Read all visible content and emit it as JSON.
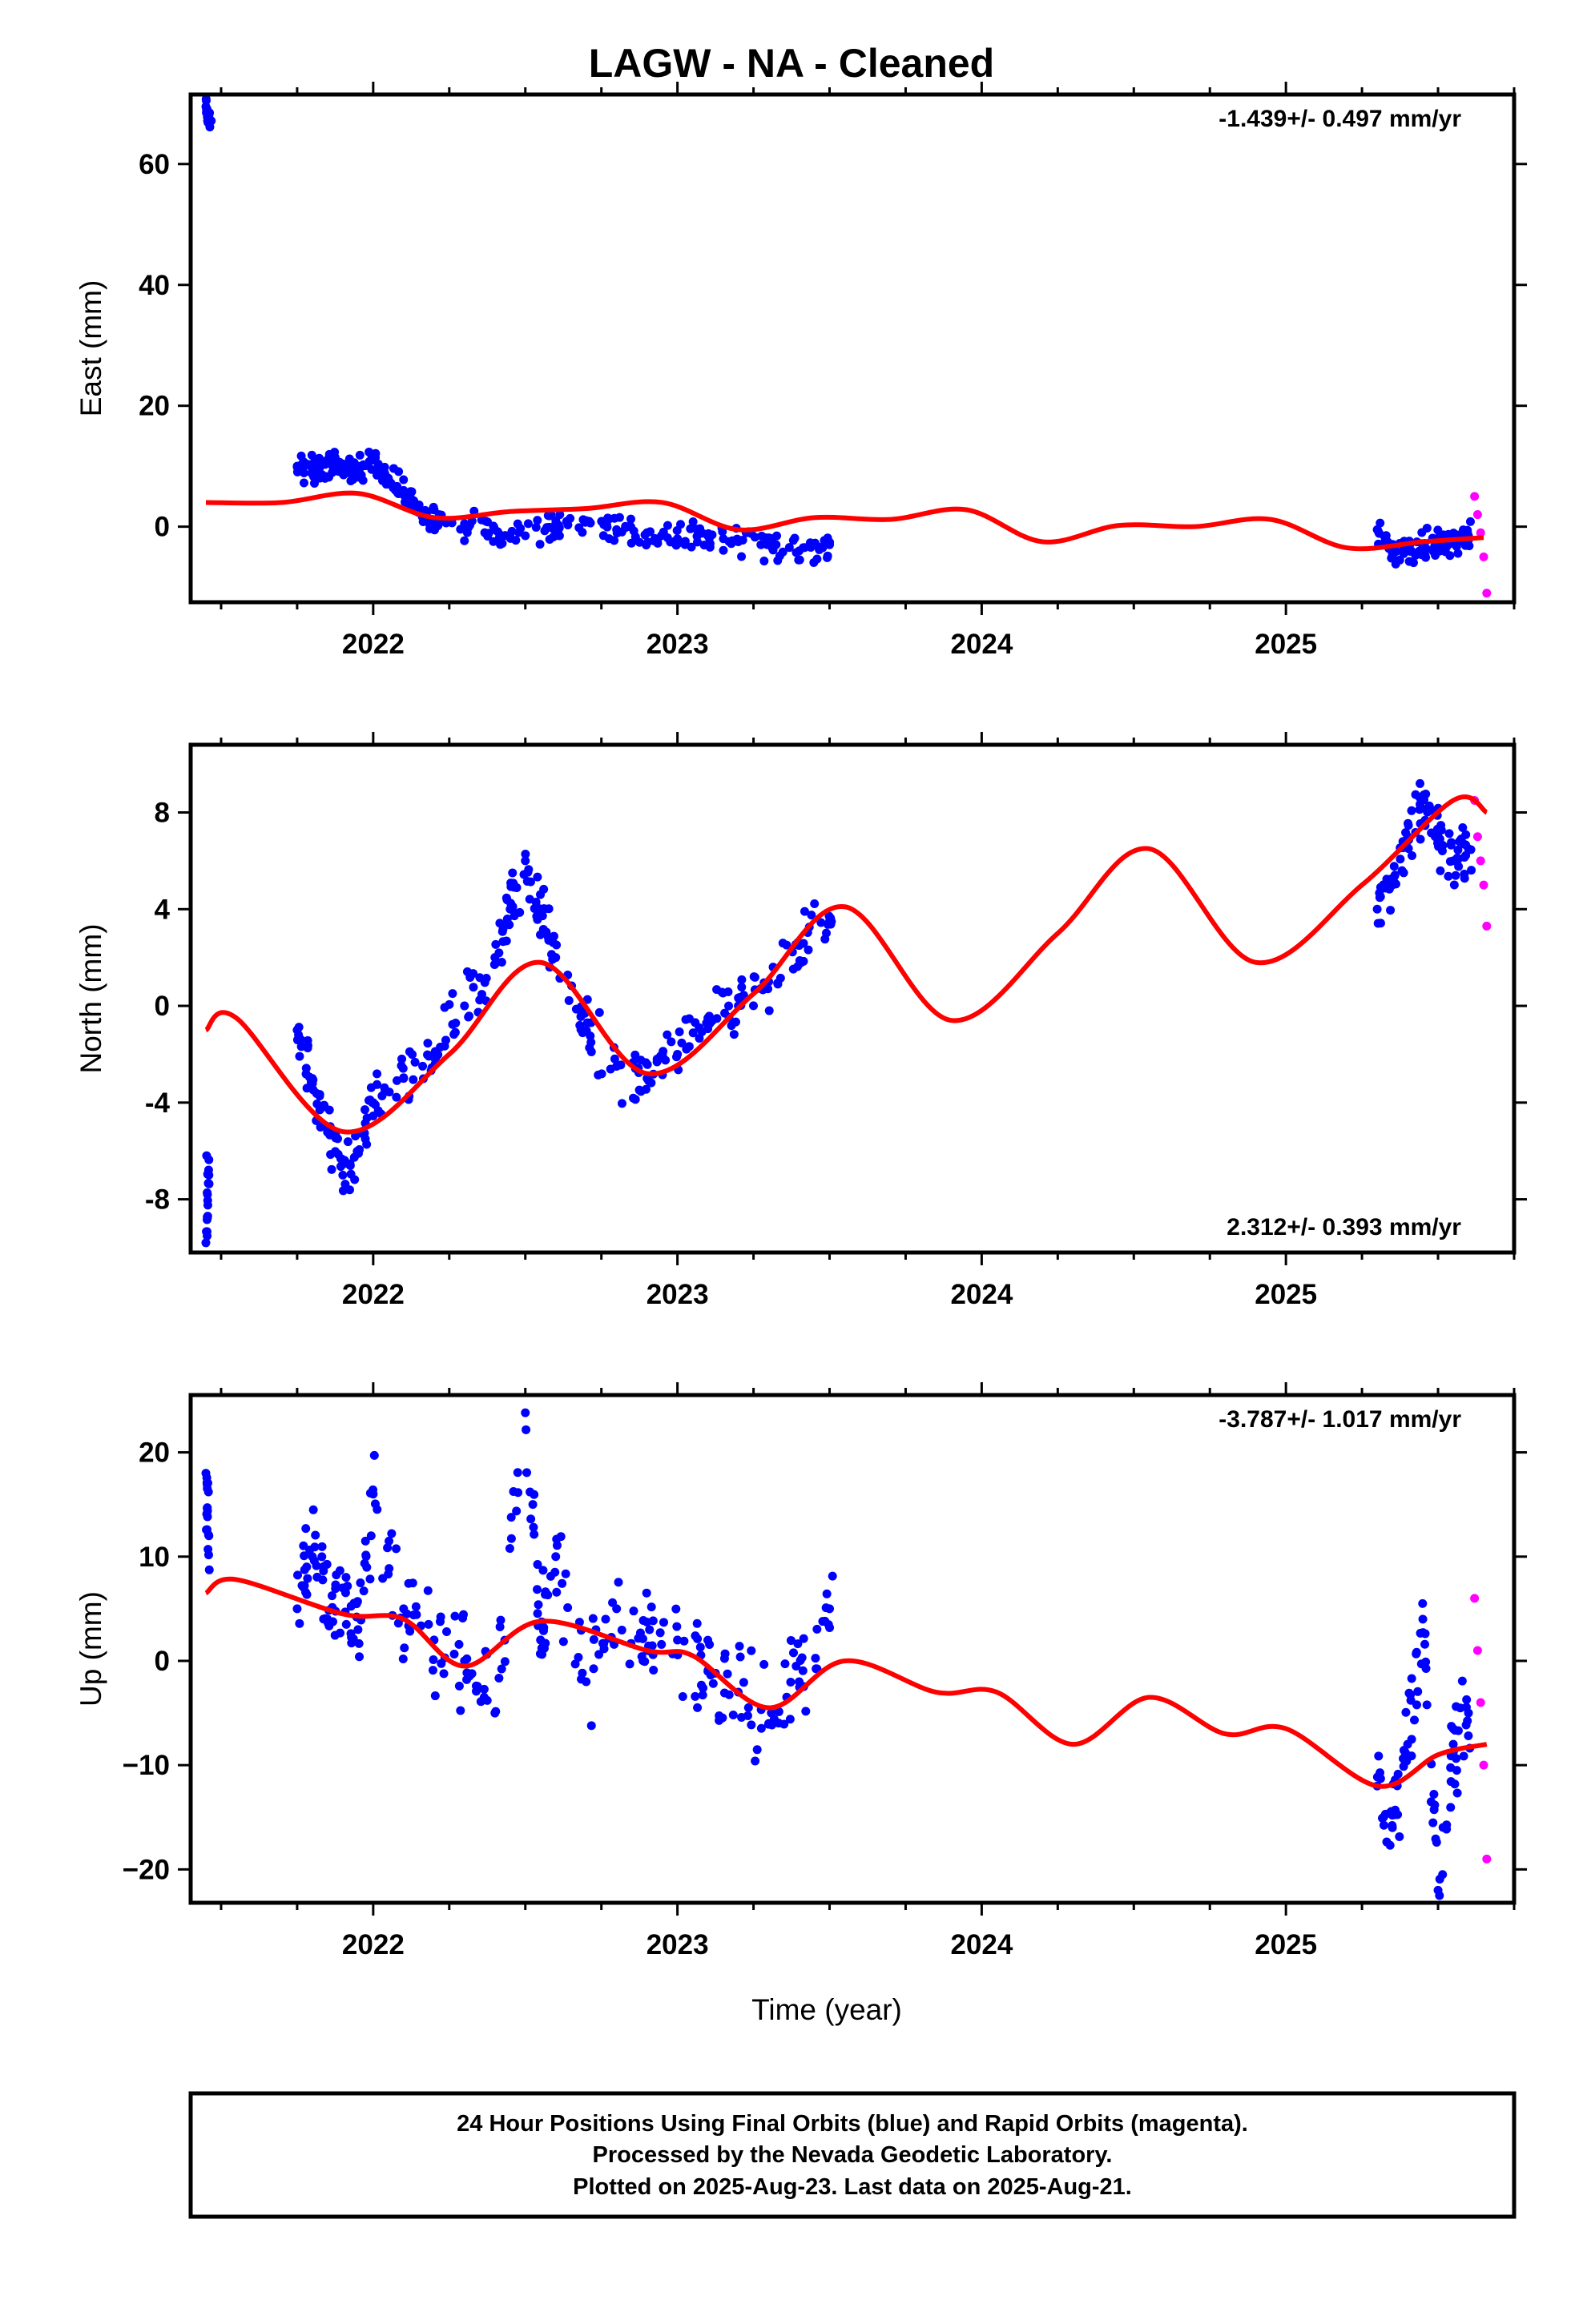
{
  "figure_title": "LAGW  - NA - Cleaned",
  "xlabel": "Time (year)",
  "colors": {
    "final_orbits": "#0000ff",
    "rapid_orbits": "#ff00ff",
    "model": "#ff0000",
    "frame": "#000000"
  },
  "footer": [
    "24 Hour Positions Using Final Orbits (blue) and Rapid Orbits (magenta).",
    "Processed by the Nevada Geodetic Laboratory.",
    "Plotted on 2025-Aug-23. Last data on 2025-Aug-21."
  ],
  "chart_data": [
    {
      "type": "scatter",
      "ylabel": "East (mm)",
      "rate": "-1.439+/- 0.497 mm/yr",
      "xlim": [
        2021.4,
        2025.75
      ],
      "ylim": [
        -12.5,
        71.5
      ],
      "yticks": [
        0,
        20,
        40,
        60
      ],
      "ytick_labels": [
        "0",
        "20",
        "40",
        "60"
      ],
      "xticks": [
        2022,
        2023,
        2024,
        2025
      ],
      "xtick_labels": [
        "2022",
        "2023",
        "2024",
        "2025"
      ],
      "series": [
        {
          "role": "final_orbits",
          "x": [
            2021.45,
            2021.46,
            2021.75,
            2021.8,
            2021.85,
            2021.9,
            2021.95,
            2022.0,
            2022.05,
            2022.1,
            2022.15,
            2022.2,
            2022.3,
            2022.4,
            2022.5,
            2022.6,
            2022.7,
            2022.8,
            2022.9,
            2023.0,
            2023.1,
            2023.2,
            2023.3,
            2023.4,
            2023.5,
            2025.3,
            2025.35,
            2025.4,
            2025.45,
            2025.5,
            2025.55,
            2025.6
          ],
          "values": [
            69.5,
            68,
            10,
            9.5,
            10.5,
            9,
            10,
            11,
            8,
            6,
            3,
            1,
            0.5,
            -0.5,
            -1.5,
            0.5,
            1,
            -0.5,
            -1,
            -2,
            -1.5,
            -2.5,
            -3,
            -4,
            -3,
            -0.5,
            -4.5,
            -4,
            -3,
            -2.5,
            -2,
            -1.5
          ]
        },
        {
          "role": "rapid_orbits",
          "x": [
            2025.62,
            2025.63,
            2025.64,
            2025.65,
            2025.66
          ],
          "values": [
            5,
            2,
            -1,
            -5,
            -11
          ]
        },
        {
          "role": "model",
          "x": [
            2021.45,
            2021.7,
            2021.95,
            2022.2,
            2022.45,
            2022.7,
            2022.95,
            2023.2,
            2023.45,
            2023.7,
            2023.95,
            2024.2,
            2024.45,
            2024.7,
            2024.95,
            2025.2,
            2025.45,
            2025.65
          ],
          "values": [
            4,
            4,
            5.5,
            1.5,
            2.5,
            3,
            4,
            -0.5,
            1.5,
            1.2,
            2.8,
            -2.5,
            0.2,
            0,
            1.2,
            -3.5,
            -2.5,
            -1.8
          ]
        }
      ]
    },
    {
      "type": "scatter",
      "ylabel": "North (mm)",
      "rate": "2.312+/- 0.393 mm/yr",
      "xlim": [
        2021.4,
        2025.75
      ],
      "ylim": [
        -10.2,
        10.8
      ],
      "yticks": [
        -8,
        -4,
        0,
        4,
        8
      ],
      "ytick_labels": [
        "-8",
        "-4",
        "0",
        "4",
        "8"
      ],
      "xticks": [
        2022,
        2023,
        2024,
        2025
      ],
      "xtick_labels": [
        "2022",
        "2023",
        "2024",
        "2025"
      ],
      "series": [
        {
          "role": "final_orbits",
          "x": [
            2021.45,
            2021.46,
            2021.75,
            2021.8,
            2021.85,
            2021.9,
            2021.95,
            2022.0,
            2022.1,
            2022.2,
            2022.3,
            2022.4,
            2022.45,
            2022.5,
            2022.55,
            2022.6,
            2022.7,
            2022.8,
            2022.9,
            2023.0,
            2023.1,
            2023.2,
            2023.3,
            2023.4,
            2023.5,
            2025.3,
            2025.35,
            2025.4,
            2025.45,
            2025.5,
            2025.55,
            2025.6
          ],
          "values": [
            -9.8,
            -7,
            -1,
            -3,
            -5,
            -7,
            -6,
            -4,
            -3,
            -2,
            0,
            2,
            4,
            6,
            4,
            2,
            -1,
            -2.5,
            -3,
            -2,
            -0.5,
            0,
            1,
            2.5,
            3.5,
            4,
            5,
            7,
            8.5,
            7,
            6,
            6.5
          ]
        },
        {
          "role": "rapid_orbits",
          "x": [
            2025.62,
            2025.63,
            2025.64,
            2025.65,
            2025.66
          ],
          "values": [
            8.5,
            7,
            6,
            5,
            3.3
          ]
        },
        {
          "role": "model",
          "x": [
            2021.45,
            2021.55,
            2021.9,
            2022.25,
            2022.55,
            2022.9,
            2023.25,
            2023.55,
            2023.9,
            2024.25,
            2024.55,
            2024.9,
            2025.25,
            2025.55,
            2025.66
          ],
          "values": [
            -1,
            -0.5,
            -5.2,
            -2,
            1.8,
            -2.8,
            0.5,
            4.1,
            -0.6,
            3,
            6.5,
            1.8,
            5,
            8.5,
            8
          ]
        }
      ]
    },
    {
      "type": "scatter",
      "ylabel": "Up (mm)",
      "rate": "-3.787+/- 1.017 mm/yr",
      "xlim": [
        2021.4,
        2025.75
      ],
      "ylim": [
        -23.2,
        25.5
      ],
      "yticks": [
        -20,
        -10,
        0,
        10,
        20
      ],
      "ytick_labels": [
        "−20",
        "−10",
        "0",
        "10",
        "20"
      ],
      "xticks": [
        2022,
        2023,
        2024,
        2025
      ],
      "xtick_labels": [
        "2022",
        "2023",
        "2024",
        "2025"
      ],
      "series": [
        {
          "role": "final_orbits",
          "x": [
            2021.45,
            2021.46,
            2021.75,
            2021.8,
            2021.85,
            2021.9,
            2021.95,
            2022.0,
            2022.1,
            2022.2,
            2022.3,
            2022.4,
            2022.5,
            2022.55,
            2022.6,
            2022.7,
            2022.8,
            2022.9,
            2023.0,
            2023.1,
            2023.2,
            2023.3,
            2023.4,
            2023.5,
            2025.3,
            2025.35,
            2025.4,
            2025.45,
            2025.5,
            2025.55,
            2025.6
          ],
          "values": [
            18,
            12,
            5,
            10,
            4,
            7,
            3,
            16,
            5,
            2,
            0,
            -5,
            23.8,
            2,
            10,
            -2,
            5,
            1,
            2,
            -1,
            -3,
            -6,
            -2,
            5,
            -12,
            -16,
            -8,
            4,
            -22,
            -8,
            -5
          ]
        },
        {
          "role": "rapid_orbits",
          "x": [
            2025.62,
            2025.63,
            2025.64,
            2025.65,
            2025.66
          ],
          "values": [
            6,
            1,
            -4,
            -10,
            -19
          ]
        },
        {
          "role": "model",
          "x": [
            2021.45,
            2021.55,
            2021.9,
            2022.1,
            2022.3,
            2022.55,
            2022.9,
            2023.05,
            2023.3,
            2023.55,
            2023.85,
            2024.05,
            2024.3,
            2024.55,
            2024.8,
            2025.0,
            2025.3,
            2025.5,
            2025.66
          ],
          "values": [
            6.5,
            7.8,
            4.5,
            4,
            -0.5,
            3.8,
            1,
            0.5,
            -4.5,
            0,
            -3,
            -3,
            -8,
            -3.5,
            -7,
            -6.5,
            -12,
            -9,
            -8
          ]
        }
      ]
    }
  ]
}
